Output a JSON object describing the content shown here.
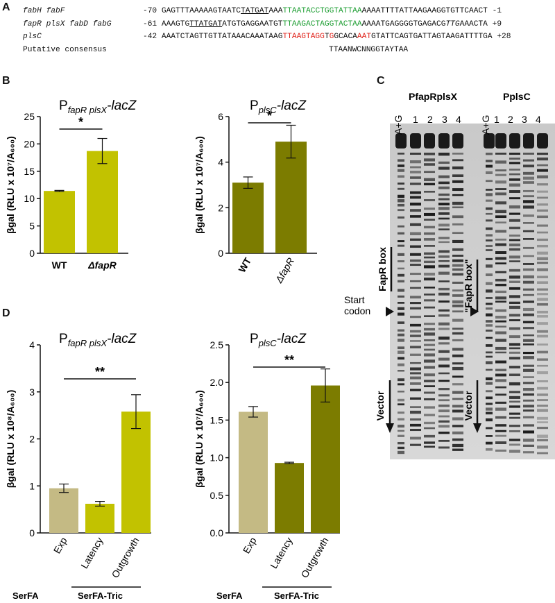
{
  "panels": {
    "A": "A",
    "B": "B",
    "C": "C",
    "D": "D"
  },
  "panelA": {
    "rows": [
      {
        "gene": "fabH fabF",
        "start": "-70",
        "pre": "GAGTTTAAAAAGTAATC",
        "ul": "TATGAT",
        "mid": "AAA",
        "green": "TTAATACCTGGTATTAA",
        "post": "AAAATTTTATTAAGAAGGTGTTCAACT",
        "end": "-1"
      },
      {
        "gene": "fapR plsX fabD fabG",
        "start": "-61",
        "pre": "AAAGTG",
        "ul": "TTATGAT",
        "mid": "ATGTGAGGAATGT",
        "green": "TTAAGACTAGGTACTAA",
        "post": "AAAATGAGGGGTGAGACG",
        "ital": "TTG",
        "post2": "AAACTA",
        "end": "+9"
      },
      {
        "gene": "plsC",
        "start": "-42",
        "pre": "AAATCTAGTTGTTATAAACAAATAAG",
        "red1": "TTAAGTAGG",
        "mid": "T",
        "red2": "G",
        "mid2": "GCACA",
        "red3": "AAT",
        "post": "GTATTCAGTGATTAGTAAGATTTTGA",
        "end": "+28"
      },
      {
        "gene": "Putative consensus",
        "seq": "TTAANWCNNGGTAYTAA"
      }
    ]
  },
  "panelB": {
    "left": {
      "title_main": "P",
      "title_sub": "fapR plsX",
      "title_tail": "-lacZ",
      "ylabel": "βgal (RLU x 10⁷/A₆₀₀)",
      "sig": "*"
    },
    "right": {
      "title_main": "P",
      "title_sub": "plsC",
      "title_tail": "-lacZ",
      "ylabel": "βgal (RLU x 10⁷/A₆₀₀)",
      "sig": "*"
    }
  },
  "panelC": {
    "header_left": "PfapRplsX",
    "header_right": "PplsC",
    "lanes": [
      "A+G",
      "1",
      "2",
      "3",
      "4"
    ],
    "fapr_box": "FapR box",
    "fapr_box_quoted": "\"FapR box\"",
    "start_codon_1": "Start",
    "start_codon_2": "codon",
    "vector": "Vector"
  },
  "panelD": {
    "left": {
      "title_main": "P",
      "title_sub": "fapR plsX",
      "title_tail": "-lacZ",
      "ylabel": "βgal (RLU x 10⁸/A₆₀₀)",
      "sig": "**"
    },
    "right": {
      "title_main": "P",
      "title_sub": "plsC",
      "title_tail": "-lacZ",
      "ylabel": "βgal (RLU x 10⁷/A₆₀₀)",
      "sig": "**"
    },
    "group1": "SerFA",
    "group2": "SerFA-Tric"
  },
  "colors": {
    "yellow": "#c2c200",
    "olive": "#7c7c00",
    "tan": "#c4ba84",
    "black": "#111111"
  },
  "chart_data": [
    {
      "type": "bar",
      "panel": "B-left",
      "categories": [
        "WT",
        "ΔfapR"
      ],
      "values": [
        11.4,
        18.7
      ],
      "errors": [
        0.1,
        2.3
      ],
      "ylim": [
        0,
        25
      ],
      "yticks": [
        0,
        5,
        10,
        15,
        20,
        25
      ],
      "ylabel": "βgal (RLU x 10⁷/A₆₀₀)",
      "colors": [
        "#c2c200",
        "#c2c200"
      ]
    },
    {
      "type": "bar",
      "panel": "B-right",
      "categories": [
        "WT",
        "ΔfapR"
      ],
      "values": [
        3.1,
        4.9
      ],
      "errors": [
        0.25,
        0.72
      ],
      "ylim": [
        0,
        6
      ],
      "yticks": [
        0,
        2,
        4,
        6
      ],
      "ylabel": "βgal (RLU x 10⁷/A₆₀₀)",
      "colors": [
        "#7c7c00",
        "#7c7c00"
      ]
    },
    {
      "type": "bar",
      "panel": "D-left",
      "categories": [
        "Exp",
        "Latency",
        "Outgrowth"
      ],
      "values": [
        0.95,
        0.62,
        2.58
      ],
      "errors": [
        0.09,
        0.05,
        0.36
      ],
      "ylim": [
        0,
        4
      ],
      "yticks": [
        0,
        1,
        2,
        3,
        4
      ],
      "ylabel": "βgal (RLU x 10⁸/A₆₀₀)",
      "colors": [
        "#c4ba84",
        "#c2c200",
        "#c2c200"
      ]
    },
    {
      "type": "bar",
      "panel": "D-right",
      "categories": [
        "Exp",
        "Latency",
        "Outgrowth"
      ],
      "values": [
        1.61,
        0.93,
        1.96
      ],
      "errors": [
        0.07,
        0.01,
        0.22
      ],
      "ylim": [
        0,
        2.5
      ],
      "yticks": [
        "0.0",
        "0.5",
        "1.0",
        "1.5",
        "2.0",
        "2.5"
      ],
      "ylabel": "βgal (RLU x 10⁷/A₆₀₀)",
      "colors": [
        "#c4ba84",
        "#7c7c00",
        "#7c7c00"
      ]
    }
  ]
}
